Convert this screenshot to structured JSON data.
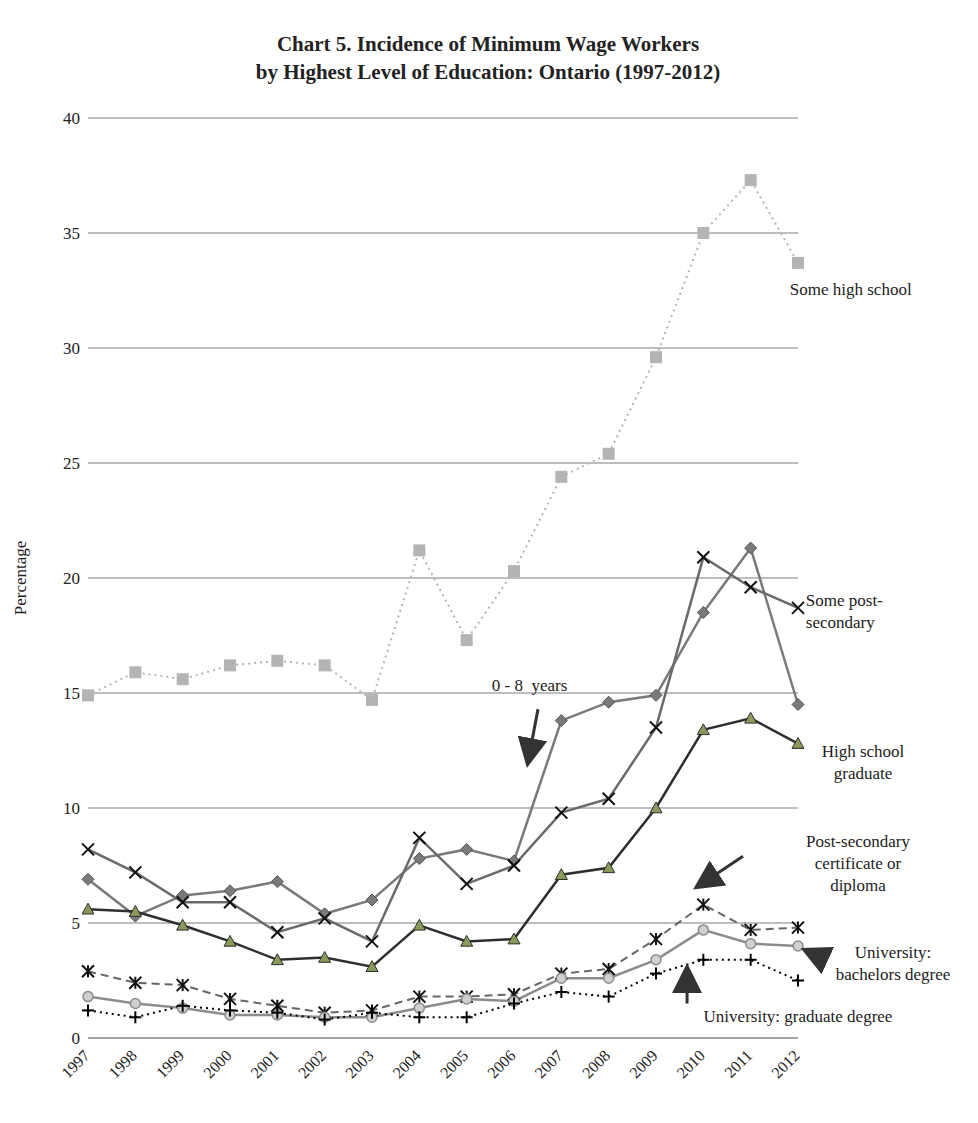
{
  "chart_data": {
    "type": "line",
    "title": "Chart 5. Incidence of Minimum Wage Workers\nby Highest Level of Education: Ontario (1997-2012)",
    "y_label": "Percentage",
    "categories": [
      "1997",
      "1998",
      "1999",
      "2000",
      "2001",
      "2002",
      "2003",
      "2004",
      "2005",
      "2006",
      "2007",
      "2008",
      "2009",
      "2010",
      "2011",
      "2012"
    ],
    "ylim": [
      0,
      40
    ],
    "yticks": [
      0,
      5,
      10,
      15,
      20,
      25,
      30,
      35,
      40
    ],
    "grid": true,
    "series": [
      {
        "name": "Some high school",
        "color": "#b4b4b4",
        "marker": "square",
        "line_style": "dotted",
        "values": [
          14.9,
          15.9,
          15.6,
          16.2,
          16.4,
          16.2,
          14.7,
          21.2,
          17.3,
          20.3,
          24.4,
          25.4,
          29.6,
          35.0,
          37.3,
          33.7
        ]
      },
      {
        "name": "0 - 8  years",
        "color": "#7a7a7a",
        "marker": "diamond",
        "line_style": "solid",
        "values": [
          6.9,
          5.3,
          6.2,
          6.4,
          6.8,
          5.4,
          6.0,
          7.8,
          8.2,
          7.7,
          13.8,
          14.6,
          14.9,
          18.5,
          21.3,
          14.5
        ]
      },
      {
        "name": "Some post-\nsecondary",
        "color": "#6a6a6a",
        "marker": "x",
        "line_style": "solid",
        "values": [
          8.2,
          7.2,
          5.9,
          5.9,
          4.6,
          5.2,
          4.2,
          8.7,
          6.7,
          7.5,
          9.8,
          10.4,
          13.5,
          20.9,
          19.6,
          18.7
        ]
      },
      {
        "name": "High school\ngraduate",
        "color": "#2e2e2e",
        "marker": "triangle",
        "line_style": "solid",
        "values": [
          5.6,
          5.5,
          4.9,
          4.2,
          3.4,
          3.5,
          3.1,
          4.9,
          4.2,
          4.3,
          7.1,
          7.4,
          10.0,
          13.4,
          13.9,
          12.8
        ]
      },
      {
        "name": "Post-secondary\ncertificate or\ndiploma",
        "color": "#666666",
        "marker": "asterisk",
        "line_style": "dashed",
        "values": [
          2.9,
          2.4,
          2.3,
          1.7,
          1.4,
          1.1,
          1.2,
          1.8,
          1.8,
          1.9,
          2.8,
          3.0,
          4.3,
          5.8,
          4.7,
          4.8
        ]
      },
      {
        "name": "University:\nbachelors degree",
        "color": "#8c8c8c",
        "marker": "circle",
        "line_style": "solid",
        "values": [
          1.8,
          1.5,
          1.3,
          1.0,
          1.0,
          0.9,
          0.9,
          1.3,
          1.7,
          1.6,
          2.6,
          2.6,
          3.4,
          4.7,
          4.1,
          4.0
        ]
      },
      {
        "name": "University: graduate degree",
        "color": "#000000",
        "marker": "plus",
        "line_style": "dotted",
        "values": [
          1.2,
          0.9,
          1.4,
          1.2,
          1.1,
          0.8,
          1.1,
          0.9,
          0.9,
          1.5,
          2.0,
          1.8,
          2.8,
          3.4,
          3.4,
          2.5
        ]
      }
    ]
  }
}
